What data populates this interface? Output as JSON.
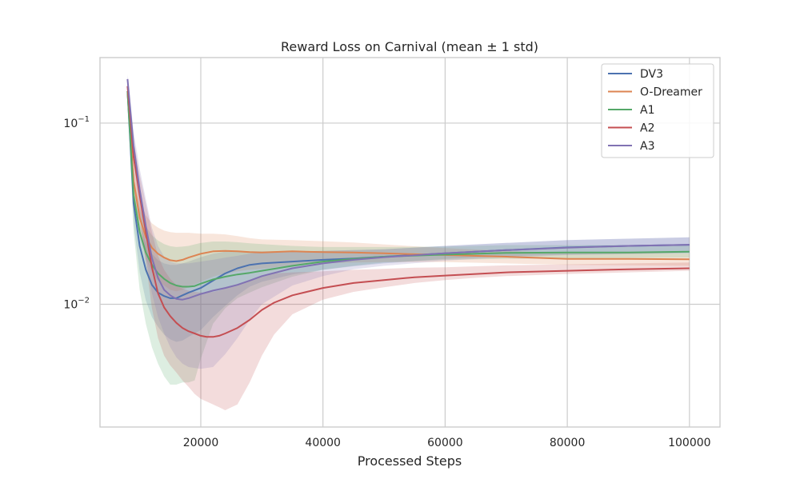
{
  "chart_data": {
    "type": "line",
    "title": "Reward Loss on Carnival (mean ± 1 std)",
    "xlabel": "Processed Steps",
    "ylabel": "",
    "yscale": "log",
    "xlim": [
      3500,
      105000
    ],
    "ylim": [
      0.0021,
      0.23
    ],
    "xticks": [
      20000,
      40000,
      60000,
      80000,
      100000
    ],
    "xtick_labels": [
      "20000",
      "40000",
      "60000",
      "80000",
      "100000"
    ],
    "yticks": [
      0.1,
      0.01
    ],
    "ytick_labels": [
      {
        "base": "10",
        "exp": "−1"
      },
      {
        "base": "10",
        "exp": "−2"
      }
    ],
    "grid": true,
    "legend_position": "top-right",
    "series": [
      {
        "name": "DV3",
        "color": "#4c72b0",
        "x": [
          8000,
          9000,
          10000,
          11000,
          12000,
          13000,
          14000,
          15000,
          16000,
          17000,
          18000,
          20000,
          22000,
          24000,
          26000,
          28000,
          30000,
          35000,
          40000,
          45000,
          50000,
          60000,
          70000,
          80000,
          90000,
          100000
        ],
        "y": [
          0.15,
          0.036,
          0.021,
          0.0155,
          0.0128,
          0.0116,
          0.0111,
          0.0108,
          0.0108,
          0.0112,
          0.0116,
          0.0123,
          0.0135,
          0.0148,
          0.0158,
          0.0165,
          0.0168,
          0.0172,
          0.0176,
          0.0179,
          0.0183,
          0.0191,
          0.0199,
          0.0206,
          0.021,
          0.0213
        ],
        "lower": [
          0.14,
          0.028,
          0.015,
          0.0105,
          0.0085,
          0.0075,
          0.0068,
          0.0064,
          0.0062,
          0.0063,
          0.0066,
          0.0072,
          0.0085,
          0.0098,
          0.0112,
          0.0125,
          0.0133,
          0.0146,
          0.0155,
          0.0162,
          0.0168,
          0.0178,
          0.0184,
          0.0188,
          0.019,
          0.0192
        ],
        "upper": [
          0.16,
          0.045,
          0.028,
          0.022,
          0.019,
          0.0175,
          0.0168,
          0.0165,
          0.0165,
          0.0168,
          0.0172,
          0.0182,
          0.019,
          0.0195,
          0.0196,
          0.0196,
          0.0196,
          0.0196,
          0.0197,
          0.0199,
          0.0201,
          0.021,
          0.0218,
          0.0226,
          0.023,
          0.0234
        ]
      },
      {
        "name": "O-Dreamer",
        "color": "#dd8452",
        "x": [
          8000,
          9000,
          10000,
          11000,
          12000,
          13000,
          14000,
          15000,
          16000,
          17000,
          18000,
          20000,
          22000,
          24000,
          26000,
          28000,
          30000,
          35000,
          40000,
          45000,
          50000,
          60000,
          70000,
          80000,
          90000,
          100000
        ],
        "y": [
          0.15,
          0.048,
          0.03,
          0.0235,
          0.0205,
          0.019,
          0.0181,
          0.0175,
          0.0173,
          0.0176,
          0.0181,
          0.019,
          0.0196,
          0.0197,
          0.0196,
          0.0194,
          0.0193,
          0.0196,
          0.0194,
          0.0193,
          0.0191,
          0.0187,
          0.0183,
          0.0178,
          0.0178,
          0.0177
        ],
        "lower": [
          0.14,
          0.04,
          0.024,
          0.0178,
          0.015,
          0.0135,
          0.0127,
          0.012,
          0.0118,
          0.012,
          0.0124,
          0.0133,
          0.0142,
          0.0148,
          0.0152,
          0.0155,
          0.0157,
          0.0164,
          0.0168,
          0.017,
          0.0171,
          0.0171,
          0.0168,
          0.0165,
          0.0164,
          0.0163
        ],
        "upper": [
          0.16,
          0.058,
          0.038,
          0.031,
          0.028,
          0.0265,
          0.0255,
          0.025,
          0.0248,
          0.0248,
          0.0248,
          0.0245,
          0.0245,
          0.0243,
          0.0238,
          0.0232,
          0.0228,
          0.0226,
          0.0223,
          0.0219,
          0.0214,
          0.0204,
          0.0197,
          0.0192,
          0.0192,
          0.0191
        ]
      },
      {
        "name": "A1",
        "color": "#55a868",
        "x": [
          8000,
          9000,
          10000,
          11000,
          12000,
          13000,
          14000,
          15000,
          16000,
          17000,
          18000,
          19000,
          20000,
          22000,
          24000,
          26000,
          28000,
          30000,
          35000,
          40000,
          45000,
          50000,
          60000,
          70000,
          80000,
          90000,
          100000
        ],
        "y": [
          0.15,
          0.04,
          0.025,
          0.0193,
          0.0165,
          0.0148,
          0.0138,
          0.0131,
          0.0127,
          0.0125,
          0.0125,
          0.0126,
          0.013,
          0.0137,
          0.0142,
          0.0146,
          0.0149,
          0.0153,
          0.0163,
          0.0172,
          0.0178,
          0.0183,
          0.0188,
          0.0192,
          0.0193,
          0.0193,
          0.0195
        ],
        "lower": [
          0.14,
          0.025,
          0.012,
          0.0078,
          0.0058,
          0.0047,
          0.004,
          0.0036,
          0.0036,
          0.0037,
          0.0037,
          0.0038,
          0.005,
          0.0078,
          0.0095,
          0.0108,
          0.0116,
          0.0124,
          0.0142,
          0.0155,
          0.0163,
          0.017,
          0.0176,
          0.0178,
          0.0179,
          0.018,
          0.0181
        ],
        "upper": [
          0.16,
          0.05,
          0.034,
          0.027,
          0.024,
          0.0225,
          0.0215,
          0.0209,
          0.0207,
          0.0208,
          0.021,
          0.0214,
          0.0218,
          0.0222,
          0.0222,
          0.022,
          0.0217,
          0.0215,
          0.021,
          0.0207,
          0.0207,
          0.0207,
          0.0208,
          0.0212,
          0.0212,
          0.0212,
          0.0213
        ]
      },
      {
        "name": "A2",
        "color": "#c44e52",
        "x": [
          8000,
          9000,
          10000,
          11000,
          12000,
          13000,
          14000,
          15000,
          16000,
          17000,
          18000,
          19000,
          20000,
          21000,
          22000,
          23000,
          24000,
          26000,
          28000,
          30000,
          32000,
          35000,
          40000,
          45000,
          50000,
          55000,
          60000,
          65000,
          70000,
          80000,
          90000,
          100000
        ],
        "y": [
          0.16,
          0.065,
          0.04,
          0.025,
          0.016,
          0.0115,
          0.0096,
          0.0086,
          0.0079,
          0.0074,
          0.0071,
          0.0069,
          0.0067,
          0.0066,
          0.0066,
          0.0067,
          0.0069,
          0.0074,
          0.0082,
          0.0093,
          0.0102,
          0.0112,
          0.0123,
          0.0131,
          0.0136,
          0.0141,
          0.0144,
          0.0147,
          0.015,
          0.0153,
          0.0156,
          0.0158
        ],
        "lower": [
          0.15,
          0.052,
          0.03,
          0.017,
          0.0095,
          0.0065,
          0.0052,
          0.0046,
          0.0042,
          0.0038,
          0.0035,
          0.0032,
          0.003,
          0.0029,
          0.0028,
          0.0027,
          0.0026,
          0.0028,
          0.0037,
          0.0052,
          0.0068,
          0.0088,
          0.0106,
          0.0117,
          0.0124,
          0.0131,
          0.0136,
          0.014,
          0.0143,
          0.0147,
          0.015,
          0.0153
        ],
        "upper": [
          0.17,
          0.08,
          0.052,
          0.036,
          0.025,
          0.0185,
          0.0155,
          0.0138,
          0.0128,
          0.0122,
          0.0119,
          0.0117,
          0.0116,
          0.0116,
          0.0117,
          0.0119,
          0.0122,
          0.0128,
          0.0135,
          0.0143,
          0.0148,
          0.015,
          0.0152,
          0.0155,
          0.0157,
          0.0159,
          0.016,
          0.0162,
          0.0164,
          0.0166,
          0.0168,
          0.017
        ]
      },
      {
        "name": "A3",
        "color": "#8172b3",
        "x": [
          8000,
          9000,
          10000,
          11000,
          12000,
          13000,
          14000,
          15000,
          16000,
          17000,
          18000,
          20000,
          22000,
          24000,
          26000,
          28000,
          30000,
          35000,
          40000,
          45000,
          50000,
          60000,
          70000,
          80000,
          90000,
          100000
        ],
        "y": [
          0.175,
          0.075,
          0.043,
          0.027,
          0.018,
          0.014,
          0.012,
          0.0112,
          0.0107,
          0.0106,
          0.0108,
          0.0114,
          0.0119,
          0.0123,
          0.0128,
          0.0135,
          0.0143,
          0.0158,
          0.0168,
          0.0176,
          0.0182,
          0.0191,
          0.0199,
          0.0205,
          0.021,
          0.0213
        ],
        "lower": [
          0.165,
          0.062,
          0.032,
          0.018,
          0.0115,
          0.0085,
          0.0069,
          0.0058,
          0.0051,
          0.0047,
          0.0045,
          0.0044,
          0.0045,
          0.0053,
          0.0065,
          0.0082,
          0.01,
          0.0127,
          0.0143,
          0.0156,
          0.0163,
          0.0174,
          0.0182,
          0.0187,
          0.0189,
          0.0191
        ],
        "upper": [
          0.185,
          0.09,
          0.056,
          0.038,
          0.0265,
          0.021,
          0.0183,
          0.0172,
          0.0168,
          0.0168,
          0.0168,
          0.0172,
          0.0176,
          0.0181,
          0.0185,
          0.019,
          0.0194,
          0.0196,
          0.0197,
          0.0199,
          0.0201,
          0.021,
          0.0218,
          0.0226,
          0.023,
          0.0234
        ]
      }
    ]
  }
}
